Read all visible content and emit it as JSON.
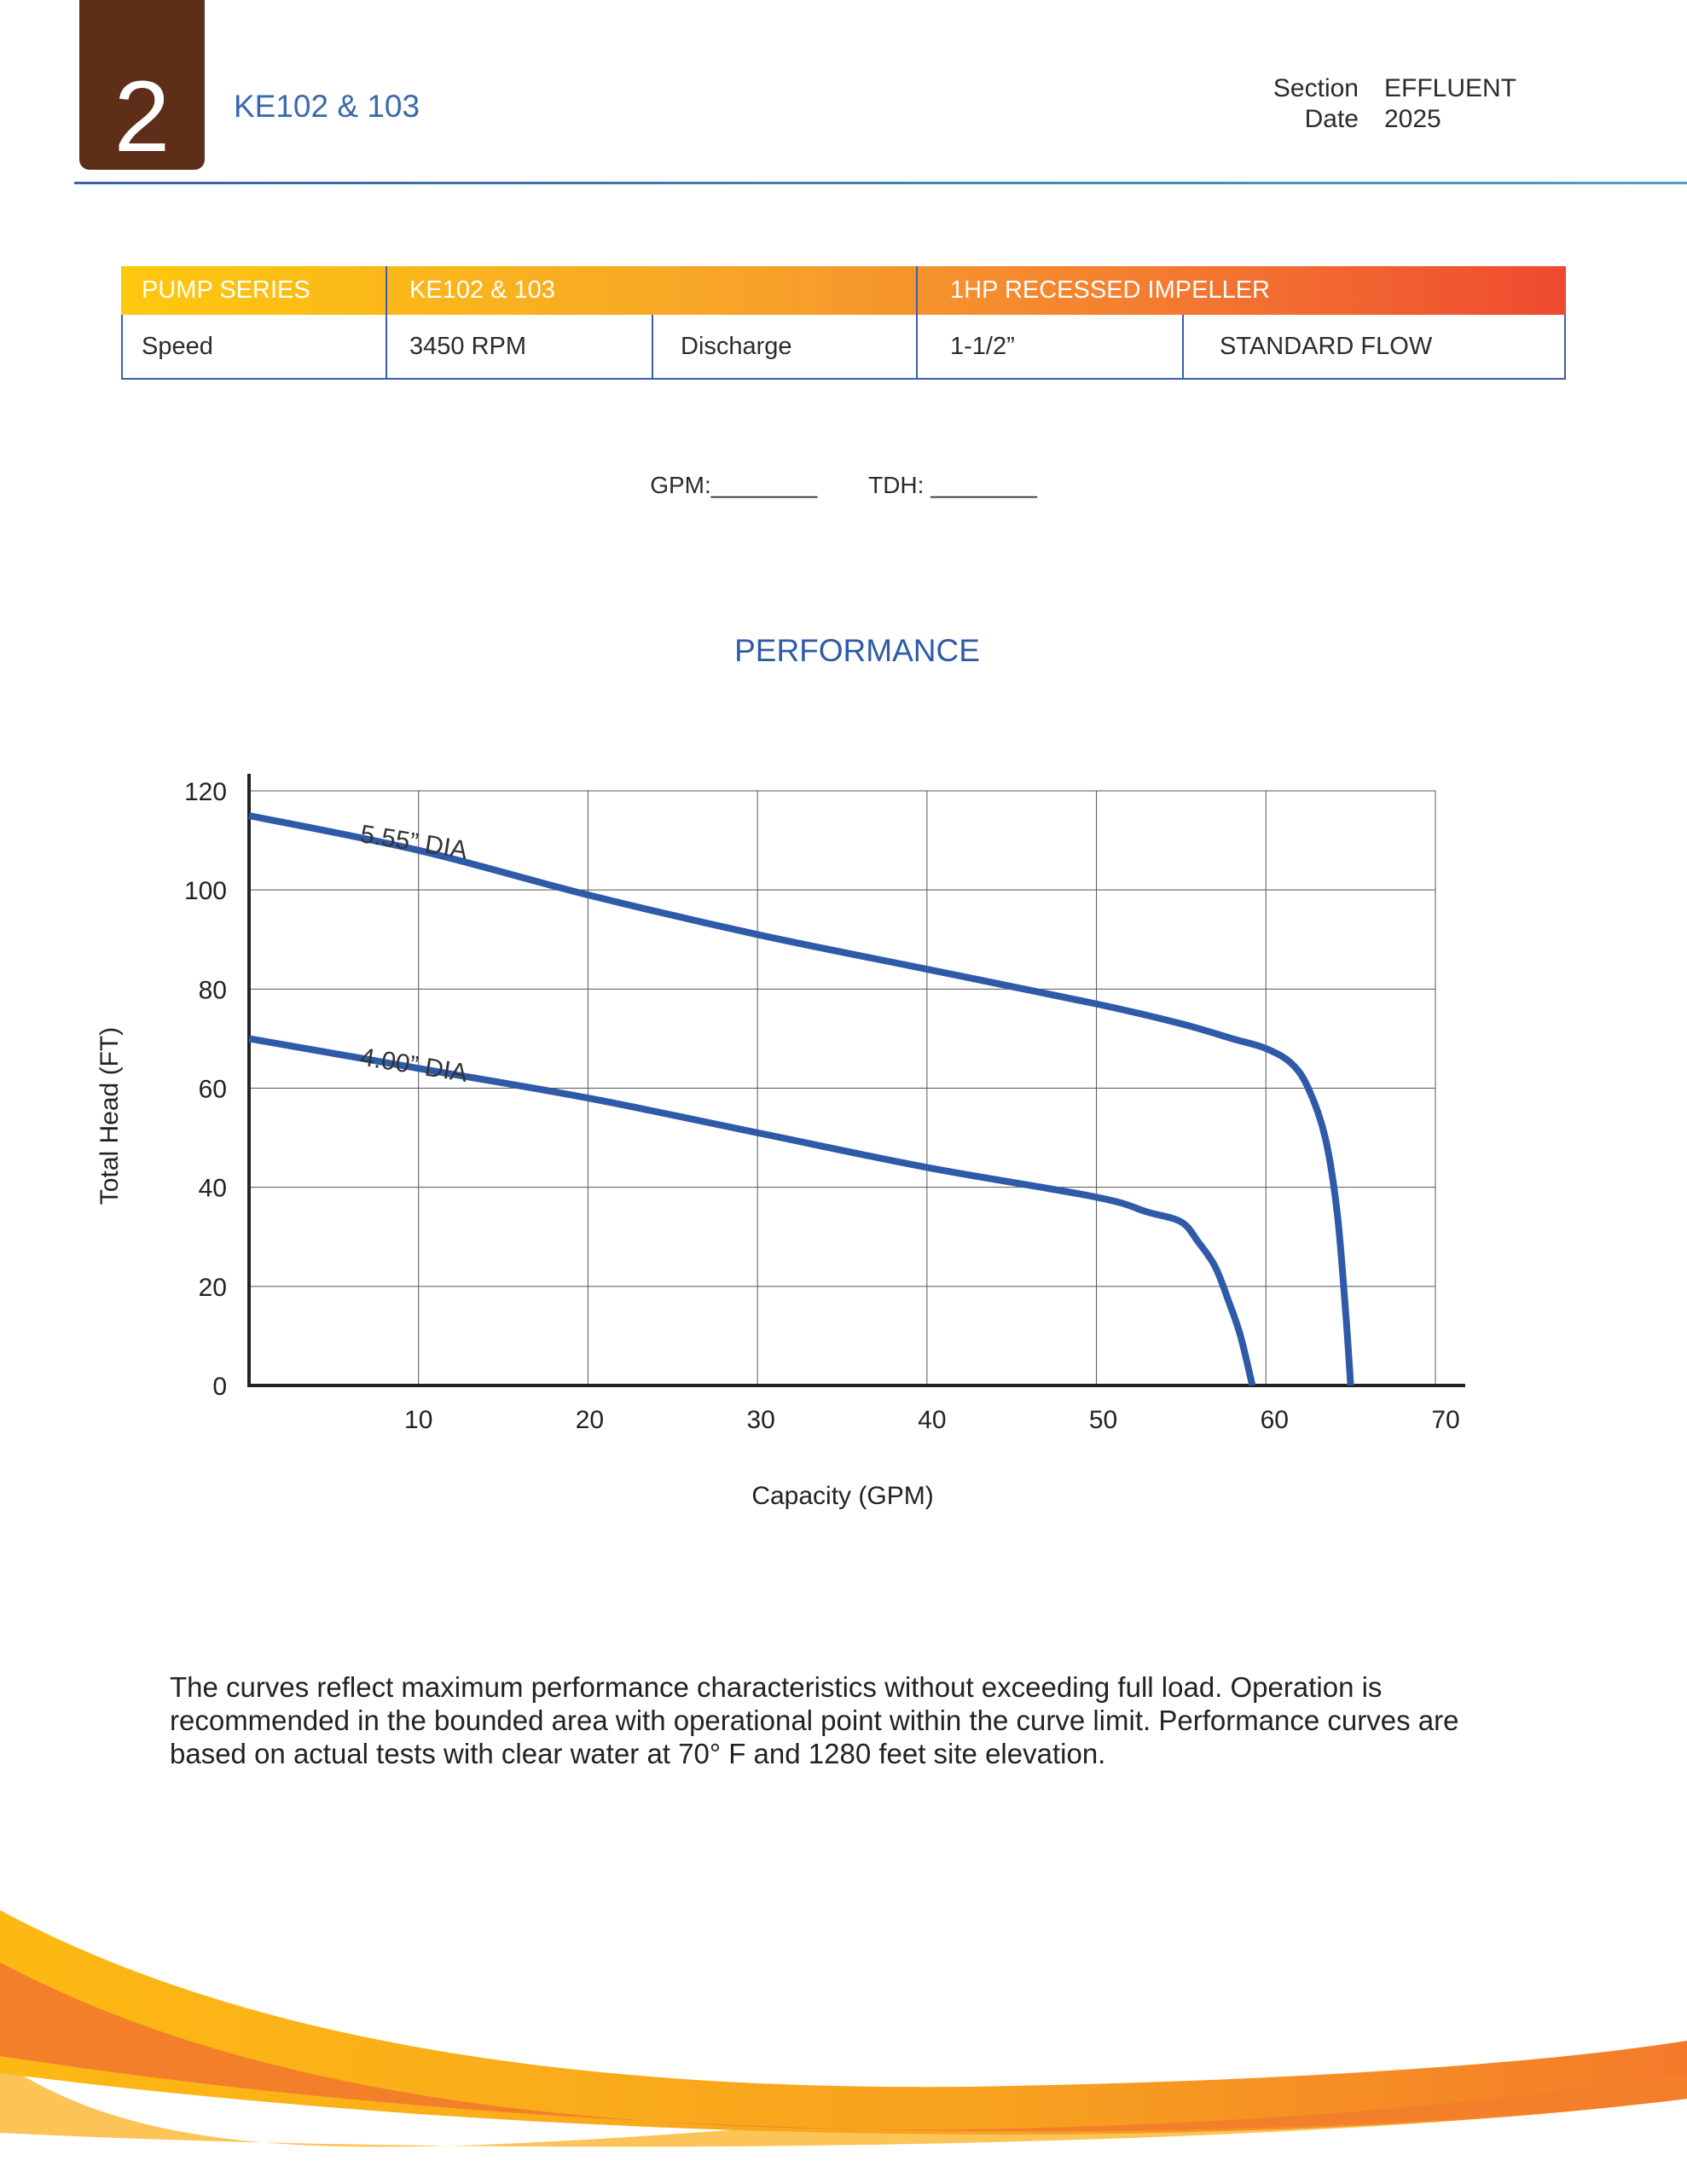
{
  "header": {
    "section_number": "2",
    "model": "KE102 & 103",
    "section_label": "Section",
    "section_value": "EFFLUENT",
    "date_label": "Date",
    "date_value": "2025"
  },
  "spec_table": {
    "header": [
      "PUMP SERIES",
      "KE102 & 103",
      "1HP RECESSED IMPELLER"
    ],
    "row": [
      "Speed",
      "3450 RPM",
      "Discharge",
      "1-1/2”",
      "STANDARD FLOW"
    ]
  },
  "fields": {
    "gpm": "GPM:________",
    "tdh": "TDH: ________"
  },
  "colors": {
    "brown": "#5e2e18",
    "blue": "#2f5aa8",
    "curve": "#2f5aa8"
  },
  "chart_data": {
    "type": "line",
    "title": "PERFORMANCE",
    "xlabel": "Capacity (GPM)",
    "ylabel": "Total Head (FT)",
    "xlim": [
      0,
      70
    ],
    "ylim": [
      0,
      120
    ],
    "xticks": [
      10,
      20,
      30,
      40,
      50,
      60,
      70
    ],
    "yticks": [
      0,
      20,
      40,
      60,
      80,
      100,
      120
    ],
    "grid": true,
    "series": [
      {
        "name": "5.55” DIA",
        "x": [
          0,
          10,
          20,
          30,
          40,
          50,
          55,
          58,
          60,
          61.5,
          62.5,
          63.5,
          64.2,
          64.7,
          65
        ],
        "y": [
          115,
          108,
          99,
          91,
          84,
          77,
          73,
          70,
          68,
          65,
          60,
          50,
          35,
          15,
          0
        ]
      },
      {
        "name": "4.00” DIA",
        "x": [
          0,
          10,
          20,
          30,
          40,
          50,
          53,
          55,
          56,
          57,
          57.8,
          58.5,
          59.2
        ],
        "y": [
          70,
          64,
          58,
          51,
          44,
          38,
          35,
          33,
          29,
          24,
          17,
          10,
          0
        ]
      }
    ]
  },
  "note": "The curves reflect maximum performance characteristics without exceeding full load. Operation is recommended in the bounded area with operational point within the curve limit. Performance curves are based on actual tests with clear water at 70° F and 1280 feet site elevation."
}
